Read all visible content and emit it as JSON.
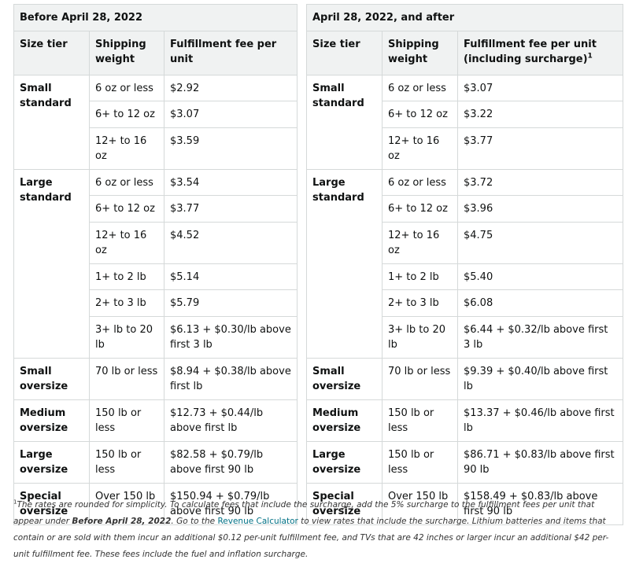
{
  "left": {
    "caption": "Before April 28, 2022",
    "headers": [
      "Size tier",
      "Shipping weight",
      "Fulfillment fee per unit"
    ],
    "rows": {
      "small_standard": {
        "tier": "Small standard",
        "items": [
          [
            "6 oz or less",
            "$2.92"
          ],
          [
            "6+ to 12 oz",
            "$3.07"
          ],
          [
            "12+ to 16 oz",
            "$3.59"
          ]
        ]
      },
      "large_standard": {
        "tier": "Large standard",
        "items": [
          [
            "6 oz or less",
            "$3.54"
          ],
          [
            "6+ to 12 oz",
            "$3.77"
          ],
          [
            "12+ to 16 oz",
            "$4.52"
          ],
          [
            "1+ to 2 lb",
            "$5.14"
          ],
          [
            "2+ to 3 lb",
            "$5.79"
          ],
          [
            "3+ lb to 20 lb",
            "$6.13 + $0.30/lb above first 3 lb"
          ]
        ]
      },
      "small_oversize": {
        "tier": "Small oversize",
        "weight": "70 lb or less",
        "fee": "$8.94 + $0.38/lb above first lb"
      },
      "medium_oversize": {
        "tier": "Medium oversize",
        "weight": "150 lb or less",
        "fee": "$12.73 + $0.44/lb above first lb"
      },
      "large_oversize": {
        "tier": "Large oversize",
        "weight": "150 lb or less",
        "fee": "$82.58 + $0.79/lb above first 90 lb"
      },
      "special_oversize": {
        "tier": "Special oversize",
        "weight": "Over 150 lb",
        "fee": "$150.94 + $0.79/lb above first 90 lb"
      }
    }
  },
  "right": {
    "caption": "April 28, 2022, and after",
    "headers": [
      "Size tier",
      "Shipping weight",
      "Fulfillment fee per unit (including surcharge)"
    ],
    "header_sup": "1",
    "rows": {
      "small_standard": {
        "tier": "Small standard",
        "items": [
          [
            "6 oz or less",
            "$3.07"
          ],
          [
            "6+ to 12 oz",
            "$3.22"
          ],
          [
            "12+ to 16 oz",
            "$3.77"
          ]
        ]
      },
      "large_standard": {
        "tier": "Large standard",
        "items": [
          [
            "6 oz or less",
            "$3.72"
          ],
          [
            "6+ to 12 oz",
            "$3.96"
          ],
          [
            "12+ to 16 oz",
            "$4.75"
          ],
          [
            "1+ to 2 lb",
            "$5.40"
          ],
          [
            "2+ to 3 lb",
            "$6.08"
          ],
          [
            "3+ lb to 20 lb",
            "$6.44 + $0.32/lb above first 3 lb"
          ]
        ]
      },
      "small_oversize": {
        "tier": "Small oversize",
        "weight": "70 lb or less",
        "fee": "$9.39 + $0.40/lb above first lb"
      },
      "medium_oversize": {
        "tier": "Medium oversize",
        "weight": "150 lb or less",
        "fee": "$13.37 + $0.46/lb above first lb"
      },
      "large_oversize": {
        "tier": "Large oversize",
        "weight": "150 lb or less",
        "fee": "$86.71 + $0.83/lb above first 90 lb"
      },
      "special_oversize": {
        "tier": "Special oversize",
        "weight": "Over 150 lb",
        "fee": "$158.49 + $0.83/lb above first 90 lb"
      }
    }
  },
  "footnote": {
    "sup": "1",
    "part1": "The rates are rounded for simplicity. To calculate fees that include the surcharge, add the 5% surcharge to the fulfillment fees per unit that appear under ",
    "bold": "Before April 28, 2022",
    "part2": ". Go to the ",
    "link": "Revenue Calculator",
    "part3": " to view rates that include the surcharge. Lithium batteries and items that contain or are sold with them incur an additional $0.12 per-unit fulfillment fee, and TVs that are 42 inches or larger incur an additional $42 per-unit fulfillment fee. These fees include the fuel and inflation surcharge."
  },
  "colors": {
    "header_bg": "#f0f2f2",
    "border": "#d5d9d9",
    "link": "#007185"
  }
}
